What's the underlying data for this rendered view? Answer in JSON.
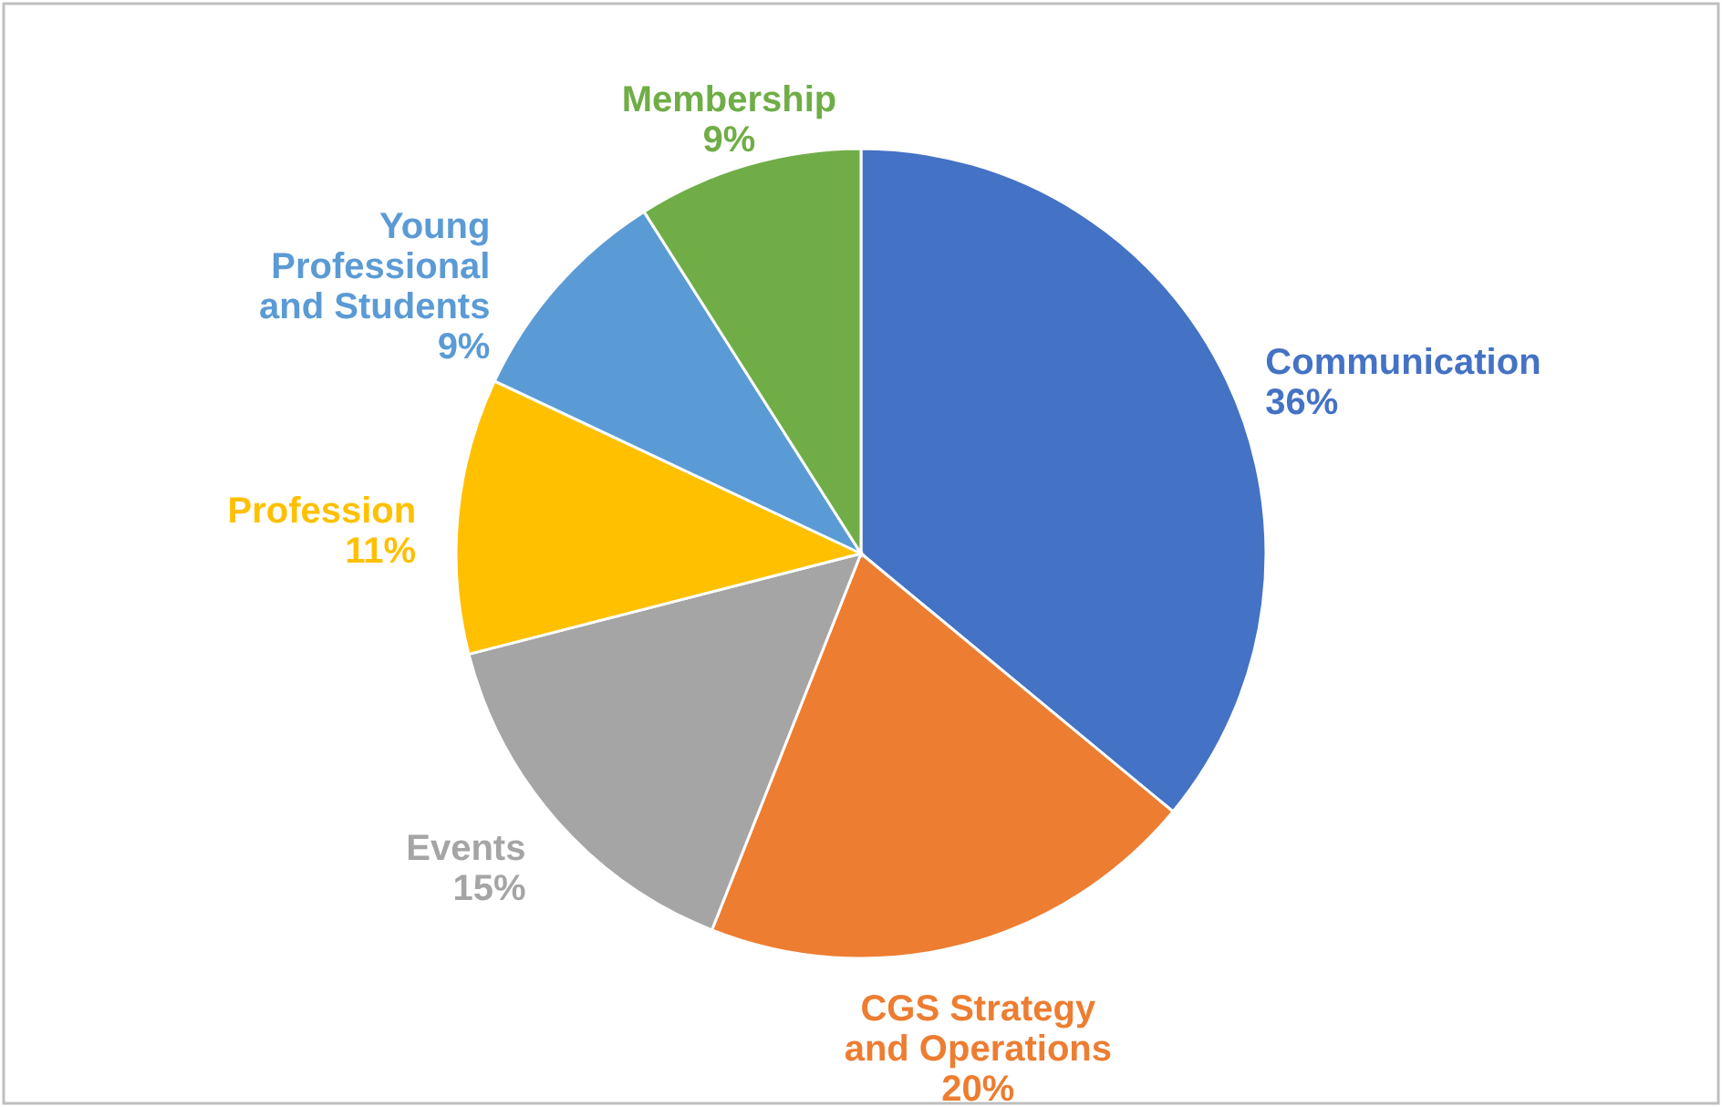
{
  "chart_data": {
    "type": "pie",
    "categories": [
      "Communication",
      "CGS Strategy and Operations",
      "Events",
      "Profession",
      "Young Professional and Students",
      "Membership"
    ],
    "values": [
      36,
      20,
      15,
      11,
      9,
      9
    ],
    "colors": [
      "#4472c4",
      "#ed7d31",
      "#a5a5a5",
      "#ffc000",
      "#5b9bd5",
      "#70ad47"
    ],
    "value_labels": [
      "36%",
      "20%",
      "15%",
      "11%",
      "9%",
      "9%"
    ]
  }
}
